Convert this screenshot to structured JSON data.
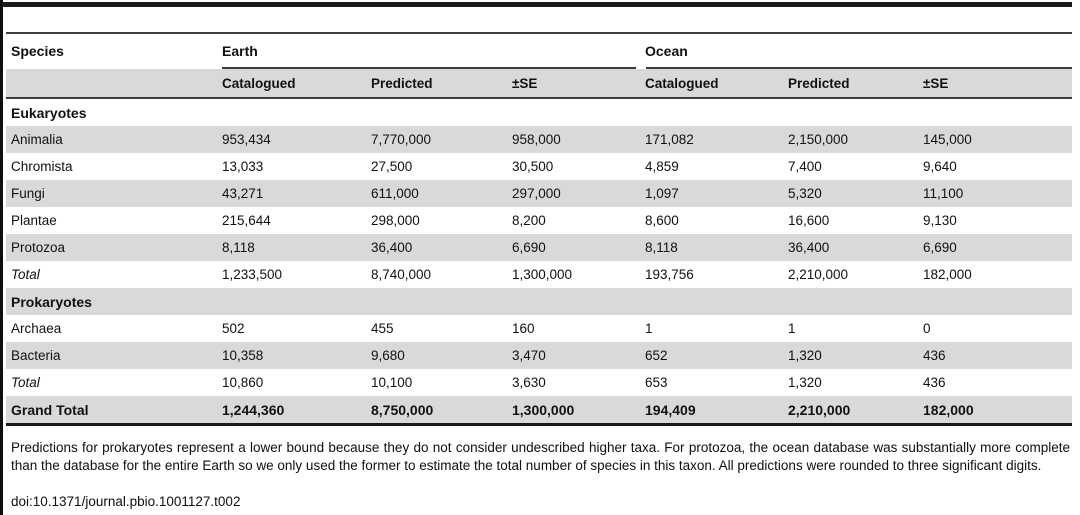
{
  "table": {
    "group_headers": {
      "species": "Species",
      "earth": "Earth",
      "ocean": "Ocean"
    },
    "sub_headers": {
      "catalogued": "Catalogued",
      "predicted": "Predicted",
      "se": "±SE"
    },
    "rows": [
      {
        "label": "Eukaryotes",
        "type": "section",
        "values": [
          "",
          "",
          "",
          "",
          "",
          ""
        ]
      },
      {
        "label": "Animalia",
        "type": "data",
        "values": [
          "953,434",
          "7,770,000",
          "958,000",
          "171,082",
          "2,150,000",
          "145,000"
        ]
      },
      {
        "label": "Chromista",
        "type": "data",
        "values": [
          "13,033",
          "27,500",
          "30,500",
          "4,859",
          "7,400",
          "9,640"
        ]
      },
      {
        "label": "Fungi",
        "type": "data",
        "values": [
          "43,271",
          "611,000",
          "297,000",
          "1,097",
          "5,320",
          "11,100"
        ]
      },
      {
        "label": "Plantae",
        "type": "data",
        "values": [
          "215,644",
          "298,000",
          "8,200",
          "8,600",
          "16,600",
          "9,130"
        ]
      },
      {
        "label": "Protozoa",
        "type": "data",
        "values": [
          "8,118",
          "36,400",
          "6,690",
          "8,118",
          "36,400",
          "6,690"
        ]
      },
      {
        "label": "Total",
        "type": "subtotal",
        "values": [
          "1,233,500",
          "8,740,000",
          "1,300,000",
          "193,756",
          "2,210,000",
          "182,000"
        ]
      },
      {
        "label": "Prokaryotes",
        "type": "section",
        "values": [
          "",
          "",
          "",
          "",
          "",
          ""
        ]
      },
      {
        "label": "Archaea",
        "type": "data",
        "values": [
          "502",
          "455",
          "160",
          "1",
          "1",
          "0"
        ]
      },
      {
        "label": "Bacteria",
        "type": "data",
        "values": [
          "10,358",
          "9,680",
          "3,470",
          "652",
          "1,320",
          "436"
        ]
      },
      {
        "label": "Total",
        "type": "subtotal",
        "values": [
          "10,860",
          "10,100",
          "3,630",
          "653",
          "1,320",
          "436"
        ]
      },
      {
        "label": "Grand Total",
        "type": "grand",
        "values": [
          "1,244,360",
          "8,750,000",
          "1,300,000",
          "194,409",
          "2,210,000",
          "182,000"
        ]
      }
    ]
  },
  "footnote": "Predictions for prokaryotes represent a lower bound because they do not consider undescribed higher taxa. For protozoa, the ocean database was substantially more complete than the database for the entire Earth so we only used the former to estimate the total number of species in this taxon. All predictions were rounded to three significant digits.",
  "doi": "doi:10.1371/journal.pbio.1001127.t002",
  "colors": {
    "row_shade": "#d9d9d9",
    "rule_dark": "#1a1a1a",
    "rule_mid": "#3d3d3d"
  }
}
